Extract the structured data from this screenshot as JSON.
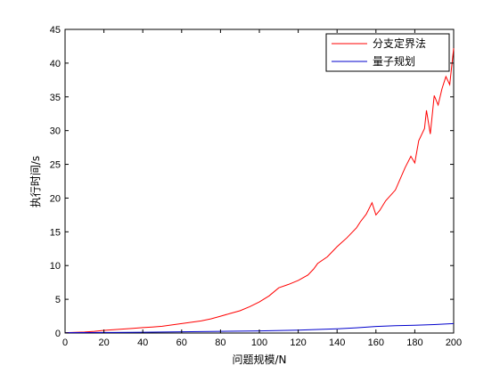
{
  "chart_data": {
    "type": "line",
    "xlabel": "问题规模/N",
    "ylabel": "执行时间/s",
    "xlim": [
      0,
      200
    ],
    "ylim": [
      0,
      45
    ],
    "xticks": [
      0,
      20,
      40,
      60,
      80,
      100,
      120,
      140,
      160,
      180,
      200
    ],
    "yticks": [
      0,
      5,
      10,
      15,
      20,
      25,
      30,
      35,
      40,
      45
    ],
    "grid": false,
    "legend_position": "top-right",
    "series": [
      {
        "name": "分支定界法",
        "color": "#ff0000",
        "x": [
          0,
          5,
          10,
          15,
          20,
          25,
          30,
          35,
          40,
          45,
          50,
          55,
          60,
          65,
          70,
          75,
          80,
          85,
          90,
          95,
          100,
          105,
          110,
          115,
          120,
          125,
          128,
          130,
          135,
          140,
          145,
          150,
          152,
          155,
          158,
          160,
          162,
          165,
          170,
          175,
          178,
          180,
          182,
          185,
          186,
          188,
          190,
          192,
          194,
          196,
          198,
          200
        ],
        "values": [
          0.05,
          0.1,
          0.15,
          0.25,
          0.4,
          0.5,
          0.6,
          0.7,
          0.8,
          0.9,
          1.0,
          1.2,
          1.4,
          1.6,
          1.8,
          2.1,
          2.5,
          2.9,
          3.3,
          3.9,
          4.6,
          5.5,
          6.7,
          7.2,
          7.8,
          8.6,
          9.5,
          10.3,
          11.3,
          12.8,
          14.1,
          15.6,
          16.5,
          17.6,
          19.3,
          17.5,
          18.2,
          19.6,
          21.2,
          24.5,
          26.2,
          25.2,
          28.5,
          30.3,
          33.0,
          29.5,
          35.2,
          33.8,
          36.2,
          38.0,
          36.8,
          42.2
        ]
      },
      {
        "name": "量子规划",
        "color": "#0000cc",
        "x": [
          0,
          20,
          40,
          60,
          80,
          100,
          120,
          140,
          150,
          160,
          170,
          180,
          190,
          200
        ],
        "values": [
          0.05,
          0.08,
          0.12,
          0.18,
          0.25,
          0.32,
          0.42,
          0.62,
          0.78,
          0.98,
          1.1,
          1.15,
          1.25,
          1.4
        ]
      }
    ]
  }
}
